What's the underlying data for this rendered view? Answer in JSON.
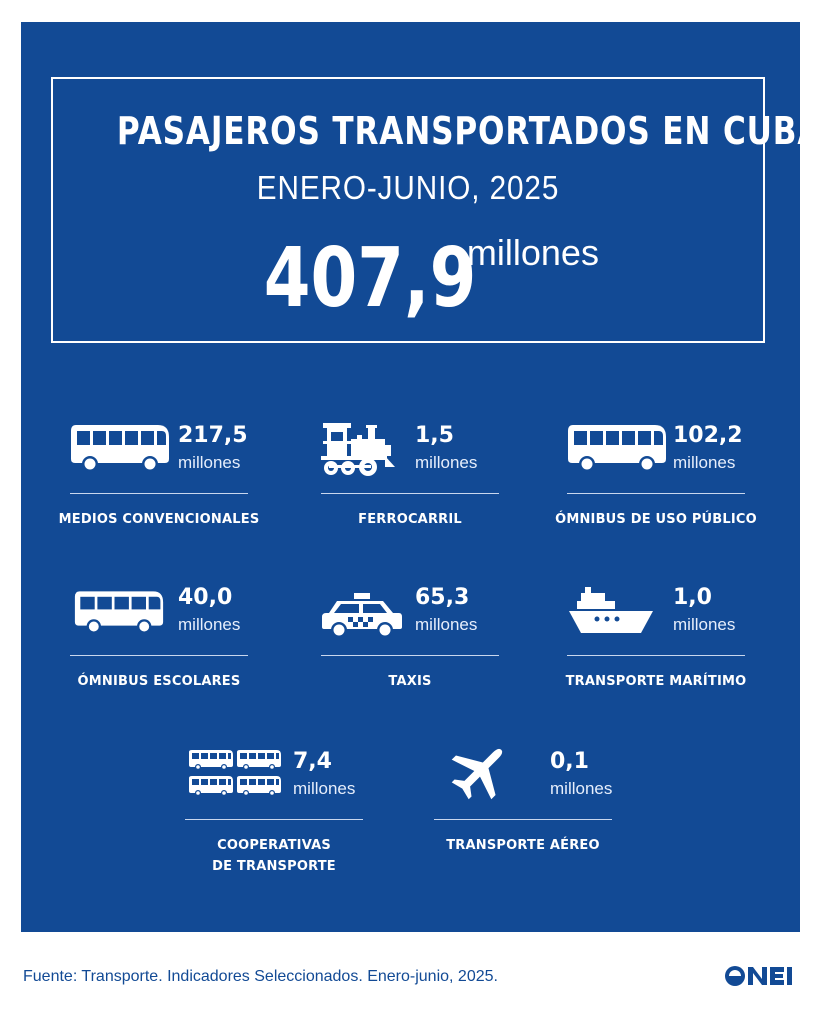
{
  "header": {
    "title": "PASAJEROS TRANSPORTADOS EN CUBA",
    "subtitle": "ENERO-JUNIO, 2025",
    "total_value": "407,9",
    "total_unit": "millones"
  },
  "stats": [
    {
      "value": "217,5",
      "unit": "millones",
      "label": "MEDIOS CONVENCIONALES",
      "icon": "bus-icon"
    },
    {
      "value": "1,5",
      "unit": "millones",
      "label": "FERROCARRIL",
      "icon": "train-icon"
    },
    {
      "value": "102,2",
      "unit": "millones",
      "label": "ÓMNIBUS DE USO PÚBLICO",
      "icon": "bus-icon"
    },
    {
      "value": "40,0",
      "unit": "millones",
      "label": "ÓMNIBUS ESCOLARES",
      "icon": "bus-icon"
    },
    {
      "value": "65,3",
      "unit": "millones",
      "label": "TAXIS",
      "icon": "taxi-icon"
    },
    {
      "value": "1,0",
      "unit": "millones",
      "label": "TRANSPORTE MARÍTIMO",
      "icon": "ship-icon"
    },
    {
      "value": "7,4",
      "unit": "millones",
      "label": "COOPERATIVAS",
      "label2": "DE TRANSPORTE",
      "icon": "bus-fleet-icon"
    },
    {
      "value": "0,1",
      "unit": "millones",
      "label": "TRANSPORTE AÉREO",
      "icon": "airplane-icon"
    }
  ],
  "footer": {
    "source": "Fuente: Transporte. Indicadores Seleccionados. Enero-junio, 2025.",
    "logo_text": "ONEI"
  },
  "colors": {
    "background": "#124a95",
    "text": "#ffffff",
    "page": "#ffffff"
  }
}
